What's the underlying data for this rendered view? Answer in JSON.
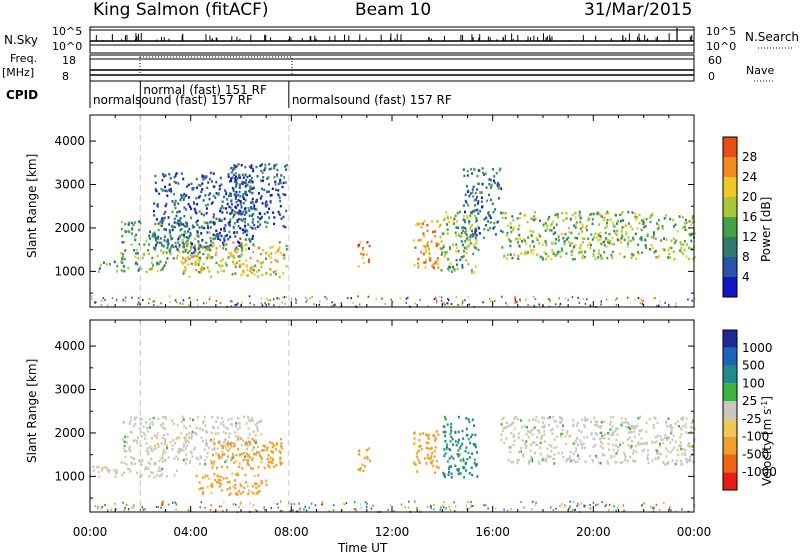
{
  "header": {
    "station": "King Salmon (fitACF)",
    "beam": "Beam 10",
    "date": "31/Mar/2015"
  },
  "top_panels": {
    "nsky_label": "N.Sky",
    "nsky_ticks": [
      "10^5",
      "10^0"
    ],
    "nsearch_label": "N.Search",
    "nsearch_ticks": [
      "10^5",
      "10^0"
    ],
    "freq_label_1": "Freq.",
    "freq_label_2": "[MHz]",
    "freq_ticks": [
      "18",
      "8"
    ],
    "nave_label": "Nave",
    "nave_ticks": [
      "60",
      "0"
    ],
    "cpid_label": "CPID",
    "cpid_segments": [
      {
        "start_hour": 0.0,
        "end_hour": 2.0,
        "text": "normalsound (fast) 157 RF"
      },
      {
        "start_hour": 2.0,
        "end_hour": 7.9,
        "text": "normal (fast) 151 RF"
      },
      {
        "start_hour": 7.9,
        "end_hour": 24.0,
        "text": "normalsound (fast) 157 RF"
      }
    ]
  },
  "colors": {
    "power": [
      "#1414c8",
      "#2a52a8",
      "#2e7a6e",
      "#46a046",
      "#a8c83c",
      "#f0c828",
      "#f08c1e",
      "#e65014",
      "#dc1e14"
    ],
    "velocity": [
      "#1e2896",
      "#1e64b4",
      "#1e8c8c",
      "#3cb43c",
      "#c8c8c0",
      "#f0c85a",
      "#f0a028",
      "#f06414",
      "#e61e14"
    ],
    "ground_scatter": "#b4b4b4"
  },
  "chart_data": [
    {
      "type": "heatmap",
      "name": "power",
      "xlabel": "",
      "ylabel": "Slant Range [km]",
      "xlim_hours": [
        0,
        24
      ],
      "ylim": [
        180,
        4600
      ],
      "y_ticks": [
        "1000",
        "2000",
        "3000",
        "4000"
      ],
      "colorbar_label": "Power [dB]",
      "colorbar_ticks": [
        "28",
        "24",
        "20",
        "16",
        "12",
        "8",
        "4"
      ],
      "colorbar_range": [
        0,
        32
      ],
      "scatter_regions": [
        {
          "t0": 0.0,
          "t1": 3.0,
          "r0": 1000,
          "r1": 1250,
          "level": 12
        },
        {
          "t0": 1.2,
          "t1": 4.8,
          "r0": 1300,
          "r1": 2200,
          "level": 12
        },
        {
          "t0": 2.5,
          "t1": 6.5,
          "r0": 1500,
          "r1": 3300,
          "level": 6
        },
        {
          "t0": 3.5,
          "t1": 7.8,
          "r0": 900,
          "r1": 1700,
          "level": 18
        },
        {
          "t0": 5.5,
          "t1": 7.8,
          "r0": 2000,
          "r1": 3500,
          "level": 6
        },
        {
          "t0": 10.6,
          "t1": 11.1,
          "r0": 1100,
          "r1": 1700,
          "level": 24
        },
        {
          "t0": 12.8,
          "t1": 13.9,
          "r0": 1100,
          "r1": 2200,
          "level": 22
        },
        {
          "t0": 13.9,
          "t1": 15.4,
          "r0": 1000,
          "r1": 2400,
          "level": 14
        },
        {
          "t0": 14.8,
          "t1": 16.3,
          "r0": 1800,
          "r1": 3400,
          "level": 8
        },
        {
          "t0": 16.3,
          "t1": 24.0,
          "r0": 1300,
          "r1": 2400,
          "level": 14
        }
      ]
    },
    {
      "type": "heatmap",
      "name": "velocity",
      "xlabel": "Time UT",
      "ylabel": "Slant Range [km]",
      "xlim_hours": [
        0,
        24
      ],
      "ylim": [
        180,
        4600
      ],
      "x_ticks": [
        "00:00",
        "04:00",
        "08:00",
        "12:00",
        "16:00",
        "20:00",
        "00:00"
      ],
      "y_ticks": [
        "1000",
        "2000",
        "3000",
        "4000"
      ],
      "colorbar_label": "Velocity [m s^-1]",
      "colorbar_ticks": [
        "1000",
        "500",
        "100",
        "25",
        "-25",
        "-100",
        "-500",
        "-1000"
      ],
      "scatter_regions": [
        {
          "t0": 0.0,
          "t1": 3.5,
          "r0": 1000,
          "r1": 1250,
          "velocity": 0
        },
        {
          "t0": 1.2,
          "t1": 6.8,
          "r0": 1300,
          "r1": 2400,
          "velocity": 0
        },
        {
          "t0": 4.8,
          "t1": 7.6,
          "r0": 1200,
          "r1": 1900,
          "velocity": -400
        },
        {
          "t0": 4.2,
          "t1": 7.0,
          "r0": 600,
          "r1": 1100,
          "velocity": -120
        },
        {
          "t0": 10.6,
          "t1": 11.1,
          "r0": 1100,
          "r1": 1700,
          "velocity": -350
        },
        {
          "t0": 12.8,
          "t1": 13.9,
          "r0": 1100,
          "r1": 2100,
          "velocity": -350
        },
        {
          "t0": 14.0,
          "t1": 15.4,
          "r0": 1000,
          "r1": 2400,
          "velocity": 120
        },
        {
          "t0": 16.3,
          "t1": 24.0,
          "r0": 1300,
          "r1": 2400,
          "velocity": 0
        }
      ]
    }
  ]
}
